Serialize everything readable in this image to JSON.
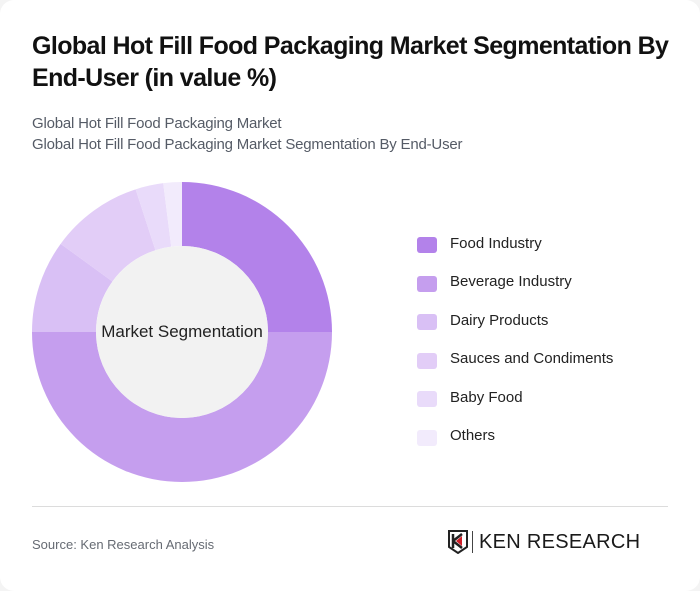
{
  "header": {
    "title": "Global Hot Fill Food Packaging Market Segmentation By End-User (in value %)",
    "subtitle_line1": "Global Hot Fill Food Packaging Market",
    "subtitle_line2": "Global Hot Fill Food Packaging Market Segmentation By End-User"
  },
  "chart": {
    "center_label": "Market Segmentation"
  },
  "legend": {
    "items": [
      {
        "label": "Food Industry",
        "color": "#b382ea"
      },
      {
        "label": "Beverage Industry",
        "color": "#c59eee"
      },
      {
        "label": "Dairy Products",
        "color": "#d9c0f5"
      },
      {
        "label": "Sauces and Condiments",
        "color": "#e2cdf7"
      },
      {
        "label": "Baby Food",
        "color": "#e9dbfa"
      },
      {
        "label": "Others",
        "color": "#f2ebfc"
      }
    ]
  },
  "footer": {
    "source": "Source: Ken Research Analysis",
    "logo_text": "KEN RESEARCH"
  },
  "chart_data": {
    "type": "pie",
    "variant": "donut",
    "title": "Global Hot Fill Food Packaging Market Segmentation By End-User (in value %)",
    "center_label": "Market Segmentation",
    "categories": [
      "Food Industry",
      "Beverage Industry",
      "Dairy Products",
      "Sauces and Condiments",
      "Baby Food",
      "Others"
    ],
    "values": [
      25,
      50,
      10,
      10,
      3,
      2
    ],
    "colors": [
      "#b382ea",
      "#c59eee",
      "#d9c0f5",
      "#e2cdf7",
      "#e9dbfa",
      "#f2ebfc"
    ],
    "start_angle_deg": 0,
    "direction": "clockwise",
    "legend_position": "right"
  }
}
